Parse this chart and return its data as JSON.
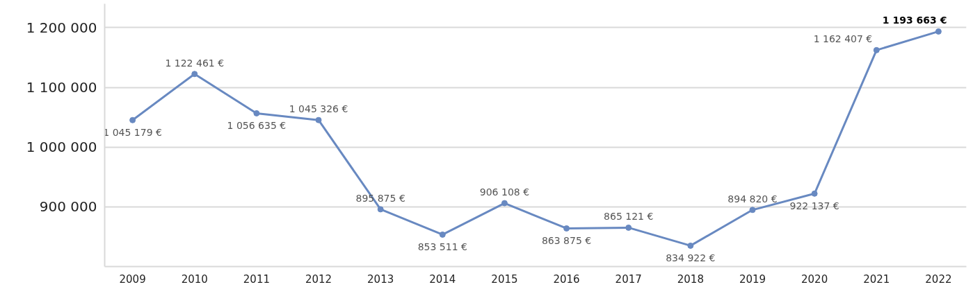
{
  "chart_data": {
    "type": "line",
    "categories": [
      "2009",
      "2010",
      "2011",
      "2012",
      "2013",
      "2014",
      "2015",
      "2016",
      "2017",
      "2018",
      "2019",
      "2020",
      "2021",
      "2022"
    ],
    "series": [
      {
        "color": "#6889c1",
        "values": [
          1045179,
          1122461,
          1056635,
          1045326,
          895875,
          853511,
          906108,
          863875,
          865121,
          834922,
          894820,
          922137,
          1162407,
          1193663
        ],
        "value_labels": [
          "1 045 179 €",
          "1 122 461 €",
          "1 056 635 €",
          "1 045 326 €",
          "895 875 €",
          "853 511 €",
          "906 108 €",
          "863 875 €",
          "865 121 €",
          "834 922 €",
          "894 820 €",
          "922 137 €",
          "1 162 407 €",
          "1 193 663 €"
        ]
      }
    ],
    "ylim": [
      800000,
      1240000
    ],
    "yticks": [
      {
        "value": 800000,
        "label": null
      },
      {
        "value": 900000,
        "label": "900 000"
      },
      {
        "value": 1000000,
        "label": "1 000 000"
      },
      {
        "value": 1100000,
        "label": "1 100 000"
      },
      {
        "value": 1200000,
        "label": "1 200 000"
      }
    ],
    "grid": "y",
    "marker": "circle",
    "line_style": "solid"
  }
}
